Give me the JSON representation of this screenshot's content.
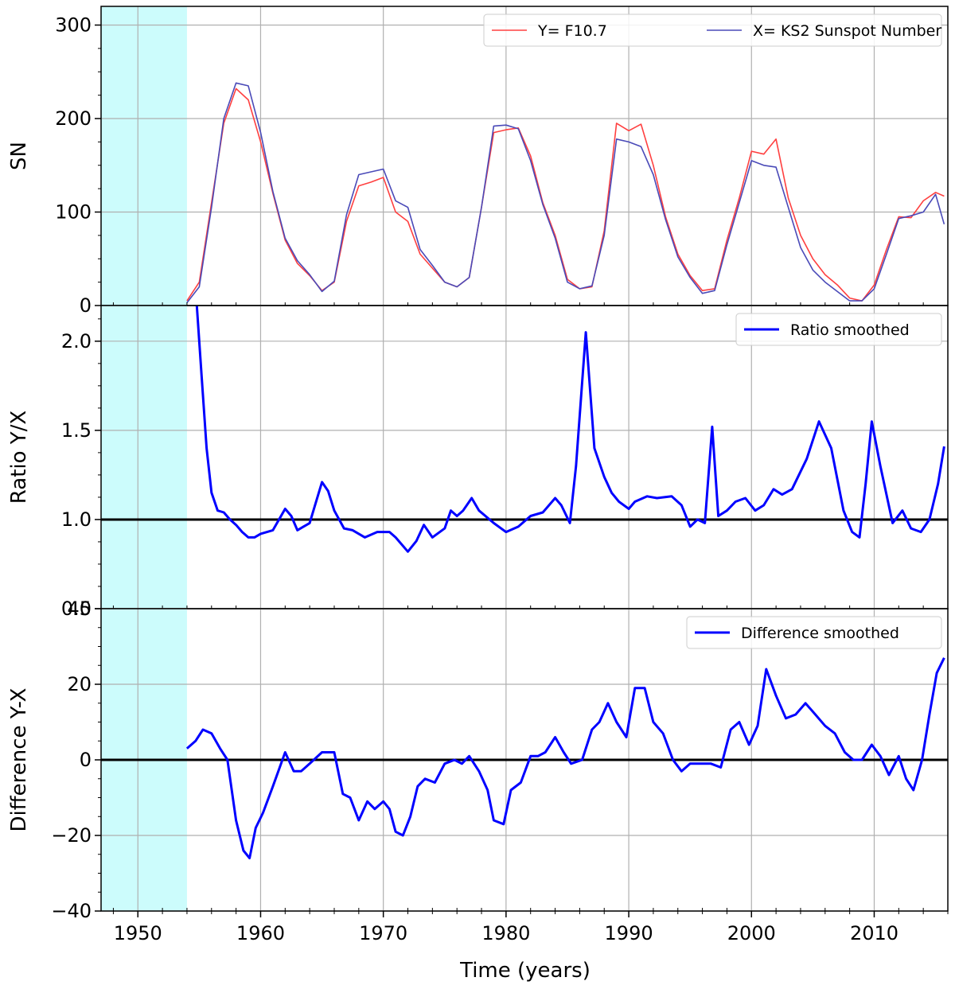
{
  "figure": {
    "xlabel": "Time (years)",
    "xlim": [
      1947,
      2016
    ],
    "xticks": [
      1950,
      1960,
      1970,
      1980,
      1990,
      2000,
      2010
    ],
    "shaded_region": {
      "from": 1947,
      "to": 1954,
      "color": "#ccfcfc"
    },
    "grid": true
  },
  "chart_data": [
    {
      "type": "line",
      "ylabel": "SN",
      "ylim": [
        0,
        320
      ],
      "yticks": [
        0,
        100,
        200,
        300
      ],
      "legend_position": "top-right",
      "series": [
        {
          "name": "Y= F10.7",
          "color": "#ff4040",
          "x": [
            1954,
            1955,
            1956,
            1957,
            1958,
            1959,
            1960,
            1961,
            1962,
            1963,
            1964,
            1965,
            1966,
            1967,
            1968,
            1969,
            1970,
            1971,
            1972,
            1973,
            1974,
            1975,
            1976,
            1977,
            1978,
            1979,
            1980,
            1981,
            1982,
            1983,
            1984,
            1985,
            1986,
            1987,
            1988,
            1989,
            1990,
            1991,
            1992,
            1993,
            1994,
            1995,
            1996,
            1997,
            1998,
            1999,
            2000,
            2001,
            2002,
            2003,
            2004,
            2005,
            2006,
            2007,
            2008,
            2009,
            2010,
            2011,
            2012,
            2013,
            2014,
            2015,
            2015.7
          ],
          "values": [
            5,
            25,
            110,
            195,
            232,
            220,
            175,
            120,
            70,
            45,
            32,
            16,
            25,
            90,
            128,
            132,
            137,
            100,
            90,
            55,
            40,
            25,
            20,
            30,
            105,
            185,
            188,
            190,
            160,
            110,
            75,
            28,
            18,
            20,
            80,
            195,
            187,
            194,
            150,
            95,
            55,
            32,
            16,
            18,
            70,
            115,
            165,
            162,
            178,
            115,
            75,
            50,
            33,
            22,
            8,
            5,
            22,
            60,
            95,
            94,
            112,
            121,
            117
          ]
        },
        {
          "name": "X= KS2 Sunspot Number",
          "color": "#4a4ab8",
          "x": [
            1954,
            1955,
            1956,
            1957,
            1958,
            1959,
            1960,
            1961,
            1962,
            1963,
            1964,
            1965,
            1966,
            1967,
            1968,
            1969,
            1970,
            1971,
            1972,
            1973,
            1974,
            1975,
            1976,
            1977,
            1978,
            1979,
            1980,
            1981,
            1982,
            1983,
            1984,
            1985,
            1986,
            1987,
            1988,
            1989,
            1990,
            1991,
            1992,
            1993,
            1994,
            1995,
            1996,
            1997,
            1998,
            1999,
            2000,
            2001,
            2002,
            2003,
            2004,
            2005,
            2006,
            2007,
            2008,
            2009,
            2010,
            2011,
            2012,
            2013,
            2014,
            2015,
            2015.7
          ],
          "values": [
            3,
            20,
            105,
            200,
            238,
            235,
            185,
            122,
            72,
            48,
            33,
            15,
            26,
            97,
            140,
            143,
            146,
            112,
            105,
            60,
            43,
            25,
            20,
            30,
            105,
            192,
            193,
            189,
            155,
            108,
            72,
            25,
            18,
            21,
            75,
            178,
            175,
            170,
            140,
            92,
            52,
            30,
            13,
            16,
            65,
            110,
            155,
            150,
            148,
            105,
            62,
            38,
            25,
            15,
            5,
            5,
            18,
            55,
            93,
            96,
            100,
            119,
            87
          ]
        }
      ]
    },
    {
      "type": "line",
      "ylabel": "Ratio Y/X",
      "ylim": [
        0.5,
        2.2
      ],
      "yticks": [
        0.5,
        1.0,
        1.5,
        2.0
      ],
      "ytick_labels": [
        "0.5",
        "1.0",
        "1.5",
        "2.0"
      ],
      "reference_line": 1.0,
      "legend_position": "top-right",
      "series": [
        {
          "name": "Ratio smoothed",
          "color": "#0000ff",
          "x": [
            1954.8,
            1955.2,
            1955.6,
            1956,
            1956.5,
            1957,
            1957.5,
            1958,
            1958.5,
            1959,
            1959.5,
            1960,
            1961,
            1962,
            1962.5,
            1963,
            1964,
            1965,
            1965.5,
            1966,
            1966.8,
            1967.5,
            1968.5,
            1969.5,
            1970.5,
            1971,
            1972,
            1972.7,
            1973.3,
            1974,
            1975,
            1975.5,
            1976,
            1976.5,
            1977.2,
            1977.8,
            1979,
            1980,
            1981,
            1982,
            1983,
            1984,
            1984.5,
            1985.2,
            1985.7,
            1986.5,
            1987.2,
            1988,
            1988.6,
            1989.2,
            1990,
            1990.5,
            1991.5,
            1992.3,
            1993.5,
            1994.3,
            1995,
            1995.6,
            1996.2,
            1996.8,
            1997.3,
            1998,
            1998.7,
            1999.5,
            2000.3,
            2001,
            2001.8,
            2002.5,
            2003.3,
            2004.5,
            2005.5,
            2006.5,
            2007.5,
            2008.2,
            2008.8,
            2009.3,
            2009.8,
            2010.5,
            2011.5,
            2012.3,
            2013,
            2013.8,
            2014.5,
            2015.2,
            2015.7
          ],
          "values": [
            2.2,
            1.8,
            1.4,
            1.15,
            1.05,
            1.04,
            1.0,
            0.97,
            0.93,
            0.9,
            0.9,
            0.92,
            0.94,
            1.06,
            1.02,
            0.94,
            0.98,
            1.21,
            1.16,
            1.05,
            0.95,
            0.94,
            0.9,
            0.93,
            0.93,
            0.9,
            0.82,
            0.88,
            0.97,
            0.9,
            0.95,
            1.05,
            1.02,
            1.05,
            1.12,
            1.05,
            0.98,
            0.93,
            0.96,
            1.02,
            1.04,
            1.12,
            1.08,
            0.98,
            1.3,
            2.05,
            1.4,
            1.24,
            1.15,
            1.1,
            1.06,
            1.1,
            1.13,
            1.12,
            1.13,
            1.08,
            0.96,
            1.0,
            0.98,
            1.52,
            1.02,
            1.05,
            1.1,
            1.12,
            1.05,
            1.08,
            1.17,
            1.14,
            1.17,
            1.34,
            1.55,
            1.4,
            1.05,
            0.93,
            0.9,
            1.2,
            1.55,
            1.3,
            0.98,
            1.05,
            0.95,
            0.93,
            1.0,
            1.2,
            1.41
          ]
        }
      ]
    },
    {
      "type": "line",
      "ylabel": "Difference Y-X",
      "ylim": [
        -40,
        40
      ],
      "yticks": [
        -40,
        -20,
        0,
        20,
        40
      ],
      "ytick_labels": [
        "−40",
        "−20",
        "0",
        "20",
        "40"
      ],
      "reference_line": 0,
      "legend_position": "top-right",
      "series": [
        {
          "name": "Difference smoothed",
          "color": "#0000ff",
          "x": [
            1954,
            1954.7,
            1955.3,
            1956,
            1956.7,
            1957.3,
            1958,
            1958.6,
            1959.1,
            1959.6,
            1960.2,
            1961,
            1962,
            1962.7,
            1963.3,
            1964,
            1965,
            1966,
            1966.7,
            1967.3,
            1968,
            1968.7,
            1969.3,
            1970,
            1970.5,
            1971,
            1971.6,
            1972.2,
            1972.8,
            1973.4,
            1974.2,
            1975,
            1975.8,
            1976.4,
            1977,
            1977.8,
            1978.5,
            1979,
            1979.8,
            1980.4,
            1981.2,
            1982,
            1982.6,
            1983.2,
            1984,
            1984.7,
            1985.3,
            1986.2,
            1987,
            1987.6,
            1988.3,
            1989,
            1989.8,
            1990.5,
            1991.3,
            1992,
            1992.8,
            1993.6,
            1994.3,
            1995,
            1995.8,
            1996.7,
            1997.5,
            1998.3,
            1999,
            1999.8,
            2000.5,
            2001.2,
            2002,
            2002.8,
            2003.6,
            2004.4,
            2005.2,
            2006,
            2006.8,
            2007.6,
            2008.3,
            2009,
            2009.8,
            2010.5,
            2011.2,
            2012,
            2012.6,
            2013.2,
            2013.9,
            2014.5,
            2015.1,
            2015.7
          ],
          "values": [
            3,
            5,
            8,
            7,
            3,
            0,
            -16,
            -24,
            -26,
            -18,
            -14,
            -7,
            2,
            -3,
            -3,
            -1,
            2,
            2,
            -9,
            -10,
            -16,
            -11,
            -13,
            -11,
            -13,
            -19,
            -20,
            -15,
            -7,
            -5,
            -6,
            -1,
            0,
            -1,
            1,
            -3,
            -8,
            -16,
            -17,
            -8,
            -6,
            1,
            1,
            2,
            6,
            2,
            -1,
            0,
            8,
            10,
            15,
            10,
            6,
            19,
            19,
            10,
            7,
            0,
            -3,
            -1,
            -1,
            -1,
            -2,
            8,
            10,
            4,
            9,
            24,
            17,
            11,
            12,
            15,
            12,
            9,
            7,
            2,
            0,
            0,
            4,
            1,
            -4,
            1,
            -5,
            -8,
            0,
            12,
            23,
            27
          ]
        }
      ]
    }
  ]
}
